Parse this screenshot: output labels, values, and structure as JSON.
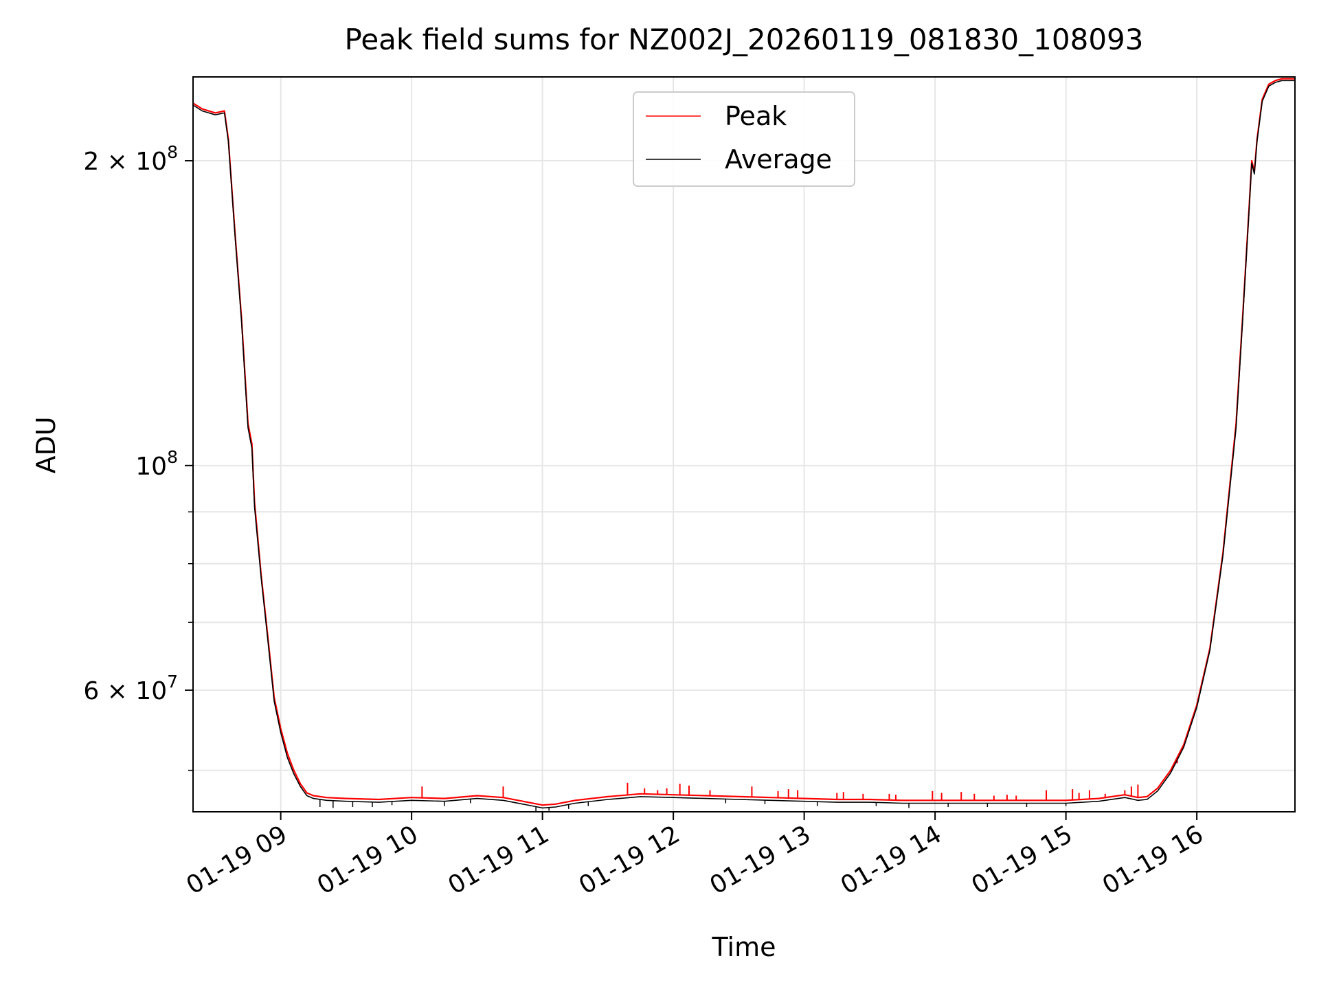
{
  "chart_data": {
    "type": "line",
    "title": "Peak field sums for NZ002J_20260119_081830_108093",
    "xlabel": "Time",
    "ylabel": "ADU",
    "y_scale": "log",
    "x_unit": "hours since 01-19 00:00",
    "xlim": [
      8.33,
      16.75
    ],
    "ylim": [
      45500000,
      242000000
    ],
    "x_ticks": [
      9,
      10,
      11,
      12,
      13,
      14,
      15,
      16
    ],
    "x_tick_labels": [
      "01-19 09",
      "01-19 10",
      "01-19 11",
      "01-19 12",
      "01-19 13",
      "01-19 14",
      "01-19 15",
      "01-19 16"
    ],
    "y_major_ticks": [
      {
        "value": 200000000,
        "base": "2 × 10",
        "exp": "8"
      },
      {
        "value": 100000000,
        "base": "10",
        "exp": "8"
      },
      {
        "value": 60000000,
        "base": "6 × 10",
        "exp": "7"
      }
    ],
    "y_minor_ticks": [
      50000000,
      70000000,
      80000000,
      90000000
    ],
    "grid": true,
    "legend_position": "top-center",
    "series": [
      {
        "name": "Peak",
        "color": "#ff0000",
        "x": [
          8.33,
          8.4,
          8.5,
          8.57,
          8.6,
          8.65,
          8.7,
          8.75,
          8.78,
          8.8,
          8.85,
          8.9,
          8.95,
          9.0,
          9.05,
          9.1,
          9.15,
          9.2,
          9.25,
          9.35,
          9.5,
          9.75,
          10.0,
          10.25,
          10.5,
          10.7,
          10.85,
          11.0,
          11.1,
          11.25,
          11.5,
          11.75,
          12.0,
          12.25,
          12.5,
          12.75,
          13.0,
          13.25,
          13.5,
          13.75,
          14.0,
          14.25,
          14.5,
          14.75,
          15.0,
          15.25,
          15.45,
          15.55,
          15.62,
          15.7,
          15.8,
          15.9,
          16.0,
          16.1,
          16.2,
          16.3,
          16.35,
          16.4,
          16.42,
          16.44,
          16.46,
          16.5,
          16.55,
          16.6,
          16.65,
          16.75
        ],
        "y": [
          228000000,
          225000000,
          223000000,
          224000000,
          210000000,
          170000000,
          140000000,
          110000000,
          105000000,
          92000000,
          78000000,
          68000000,
          59000000,
          55000000,
          52000000,
          50000000,
          48500000,
          47500000,
          47200000,
          47000000,
          46900000,
          46800000,
          47000000,
          46900000,
          47200000,
          47000000,
          46600000,
          46200000,
          46300000,
          46700000,
          47100000,
          47400000,
          47300000,
          47200000,
          47100000,
          47000000,
          46900000,
          46800000,
          46800000,
          46700000,
          46700000,
          46700000,
          46700000,
          46700000,
          46700000,
          46900000,
          47300000,
          47000000,
          47100000,
          48000000,
          50000000,
          53000000,
          58000000,
          66000000,
          82000000,
          110000000,
          140000000,
          180000000,
          200000000,
          195000000,
          210000000,
          230000000,
          238000000,
          240000000,
          241000000,
          241000000
        ]
      },
      {
        "name": "Average",
        "color": "#000000",
        "x": [
          8.33,
          8.4,
          8.5,
          8.57,
          8.6,
          8.65,
          8.7,
          8.75,
          8.78,
          8.8,
          8.85,
          8.9,
          8.95,
          9.0,
          9.05,
          9.1,
          9.15,
          9.2,
          9.25,
          9.35,
          9.5,
          9.75,
          10.0,
          10.25,
          10.5,
          10.7,
          10.85,
          11.0,
          11.1,
          11.25,
          11.5,
          11.75,
          12.0,
          12.25,
          12.5,
          12.75,
          13.0,
          13.25,
          13.5,
          13.75,
          14.0,
          14.25,
          14.5,
          14.75,
          15.0,
          15.25,
          15.45,
          15.55,
          15.62,
          15.7,
          15.8,
          15.9,
          16.0,
          16.1,
          16.2,
          16.3,
          16.35,
          16.4,
          16.42,
          16.44,
          16.46,
          16.5,
          16.55,
          16.6,
          16.65,
          16.75
        ],
        "y": [
          227000000,
          224000000,
          222000000,
          223000000,
          209000000,
          169000000,
          139000000,
          109000000,
          104000000,
          91000000,
          77500000,
          67500000,
          58500000,
          54500000,
          51500000,
          49600000,
          48200000,
          47200000,
          46900000,
          46700000,
          46600000,
          46500000,
          46700000,
          46600000,
          46900000,
          46700000,
          46300000,
          45900000,
          46000000,
          46400000,
          46800000,
          47100000,
          47000000,
          46900000,
          46800000,
          46700000,
          46600000,
          46500000,
          46500000,
          46400000,
          46400000,
          46400000,
          46400000,
          46400000,
          46400000,
          46600000,
          47000000,
          46700000,
          46800000,
          47700000,
          49700000,
          52700000,
          57700000,
          65700000,
          81500000,
          109000000,
          139000000,
          179000000,
          199000000,
          194000000,
          209000000,
          229000000,
          237000000,
          239000000,
          240000000,
          240000000
        ]
      }
    ],
    "peak_spikes": {
      "x": [
        10.08,
        10.7,
        11.65,
        11.78,
        11.88,
        11.95,
        12.05,
        12.12,
        12.28,
        12.6,
        12.8,
        12.88,
        12.95,
        13.25,
        13.3,
        13.45,
        13.65,
        13.7,
        13.98,
        14.05,
        14.2,
        14.3,
        14.45,
        14.55,
        14.62,
        14.85,
        15.05,
        15.1,
        15.18,
        15.3,
        15.45,
        15.5,
        15.55,
        15.85
      ],
      "y": [
        48200000,
        48200000,
        48600000,
        48000000,
        47800000,
        48000000,
        48500000,
        48300000,
        47800000,
        48200000,
        47700000,
        47900000,
        47800000,
        47500000,
        47600000,
        47400000,
        47400000,
        47300000,
        47700000,
        47500000,
        47600000,
        47400000,
        47200000,
        47300000,
        47200000,
        47800000,
        47900000,
        47500000,
        47800000,
        47400000,
        47800000,
        48200000,
        48400000,
        50800000
      ]
    },
    "average_dips": {
      "x": [
        9.3,
        9.4,
        9.55,
        9.7,
        9.85,
        10.25,
        10.45,
        10.95,
        11.05,
        11.2,
        11.35,
        12.4,
        12.7,
        13.1,
        13.55,
        13.8,
        14.1,
        14.4,
        14.7,
        15.0
      ],
      "y": [
        46000000,
        45900000,
        46000000,
        46000000,
        46200000,
        46100000,
        46400000,
        45500000,
        45600000,
        45800000,
        46100000,
        46400000,
        46300000,
        46100000,
        46100000,
        45900000,
        46000000,
        46000000,
        46000000,
        46100000
      ]
    }
  }
}
